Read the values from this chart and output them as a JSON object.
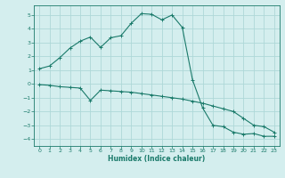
{
  "xlabel": "Humidex (Indice chaleur)",
  "bg_color": "#d4eeee",
  "grid_color": "#aed8d8",
  "line_color": "#1a7a6a",
  "xlim": [
    -0.5,
    23.5
  ],
  "ylim": [
    -4.5,
    5.7
  ],
  "xticks": [
    0,
    1,
    2,
    3,
    4,
    5,
    6,
    7,
    8,
    9,
    10,
    11,
    12,
    13,
    14,
    15,
    16,
    17,
    18,
    19,
    20,
    21,
    22,
    23
  ],
  "yticks": [
    -4,
    -3,
    -2,
    -1,
    0,
    1,
    2,
    3,
    4,
    5
  ],
  "line1_x": [
    0,
    1,
    2,
    3,
    4,
    5,
    6,
    7,
    8,
    9,
    10,
    11,
    12,
    13,
    14,
    15,
    16,
    17,
    18,
    19,
    20,
    21,
    22,
    23
  ],
  "line1_y": [
    1.1,
    1.3,
    1.9,
    2.6,
    3.1,
    3.4,
    2.65,
    3.35,
    3.5,
    4.4,
    5.1,
    5.05,
    4.65,
    5.0,
    4.1,
    0.3,
    -1.75,
    -3.0,
    -3.1,
    -3.5,
    -3.65,
    -3.6,
    -3.8,
    -3.8
  ],
  "line2_x": [
    0,
    1,
    2,
    3,
    4,
    5,
    6,
    7,
    8,
    9,
    10,
    11,
    12,
    13,
    14,
    15,
    16,
    17,
    18,
    19,
    20,
    21,
    22,
    23
  ],
  "line2_y": [
    -0.05,
    -0.1,
    -0.2,
    -0.25,
    -0.3,
    -1.2,
    -0.45,
    -0.5,
    -0.55,
    -0.6,
    -0.7,
    -0.8,
    -0.9,
    -1.0,
    -1.1,
    -1.25,
    -1.4,
    -1.6,
    -1.8,
    -2.0,
    -2.5,
    -3.0,
    -3.1,
    -3.5
  ]
}
